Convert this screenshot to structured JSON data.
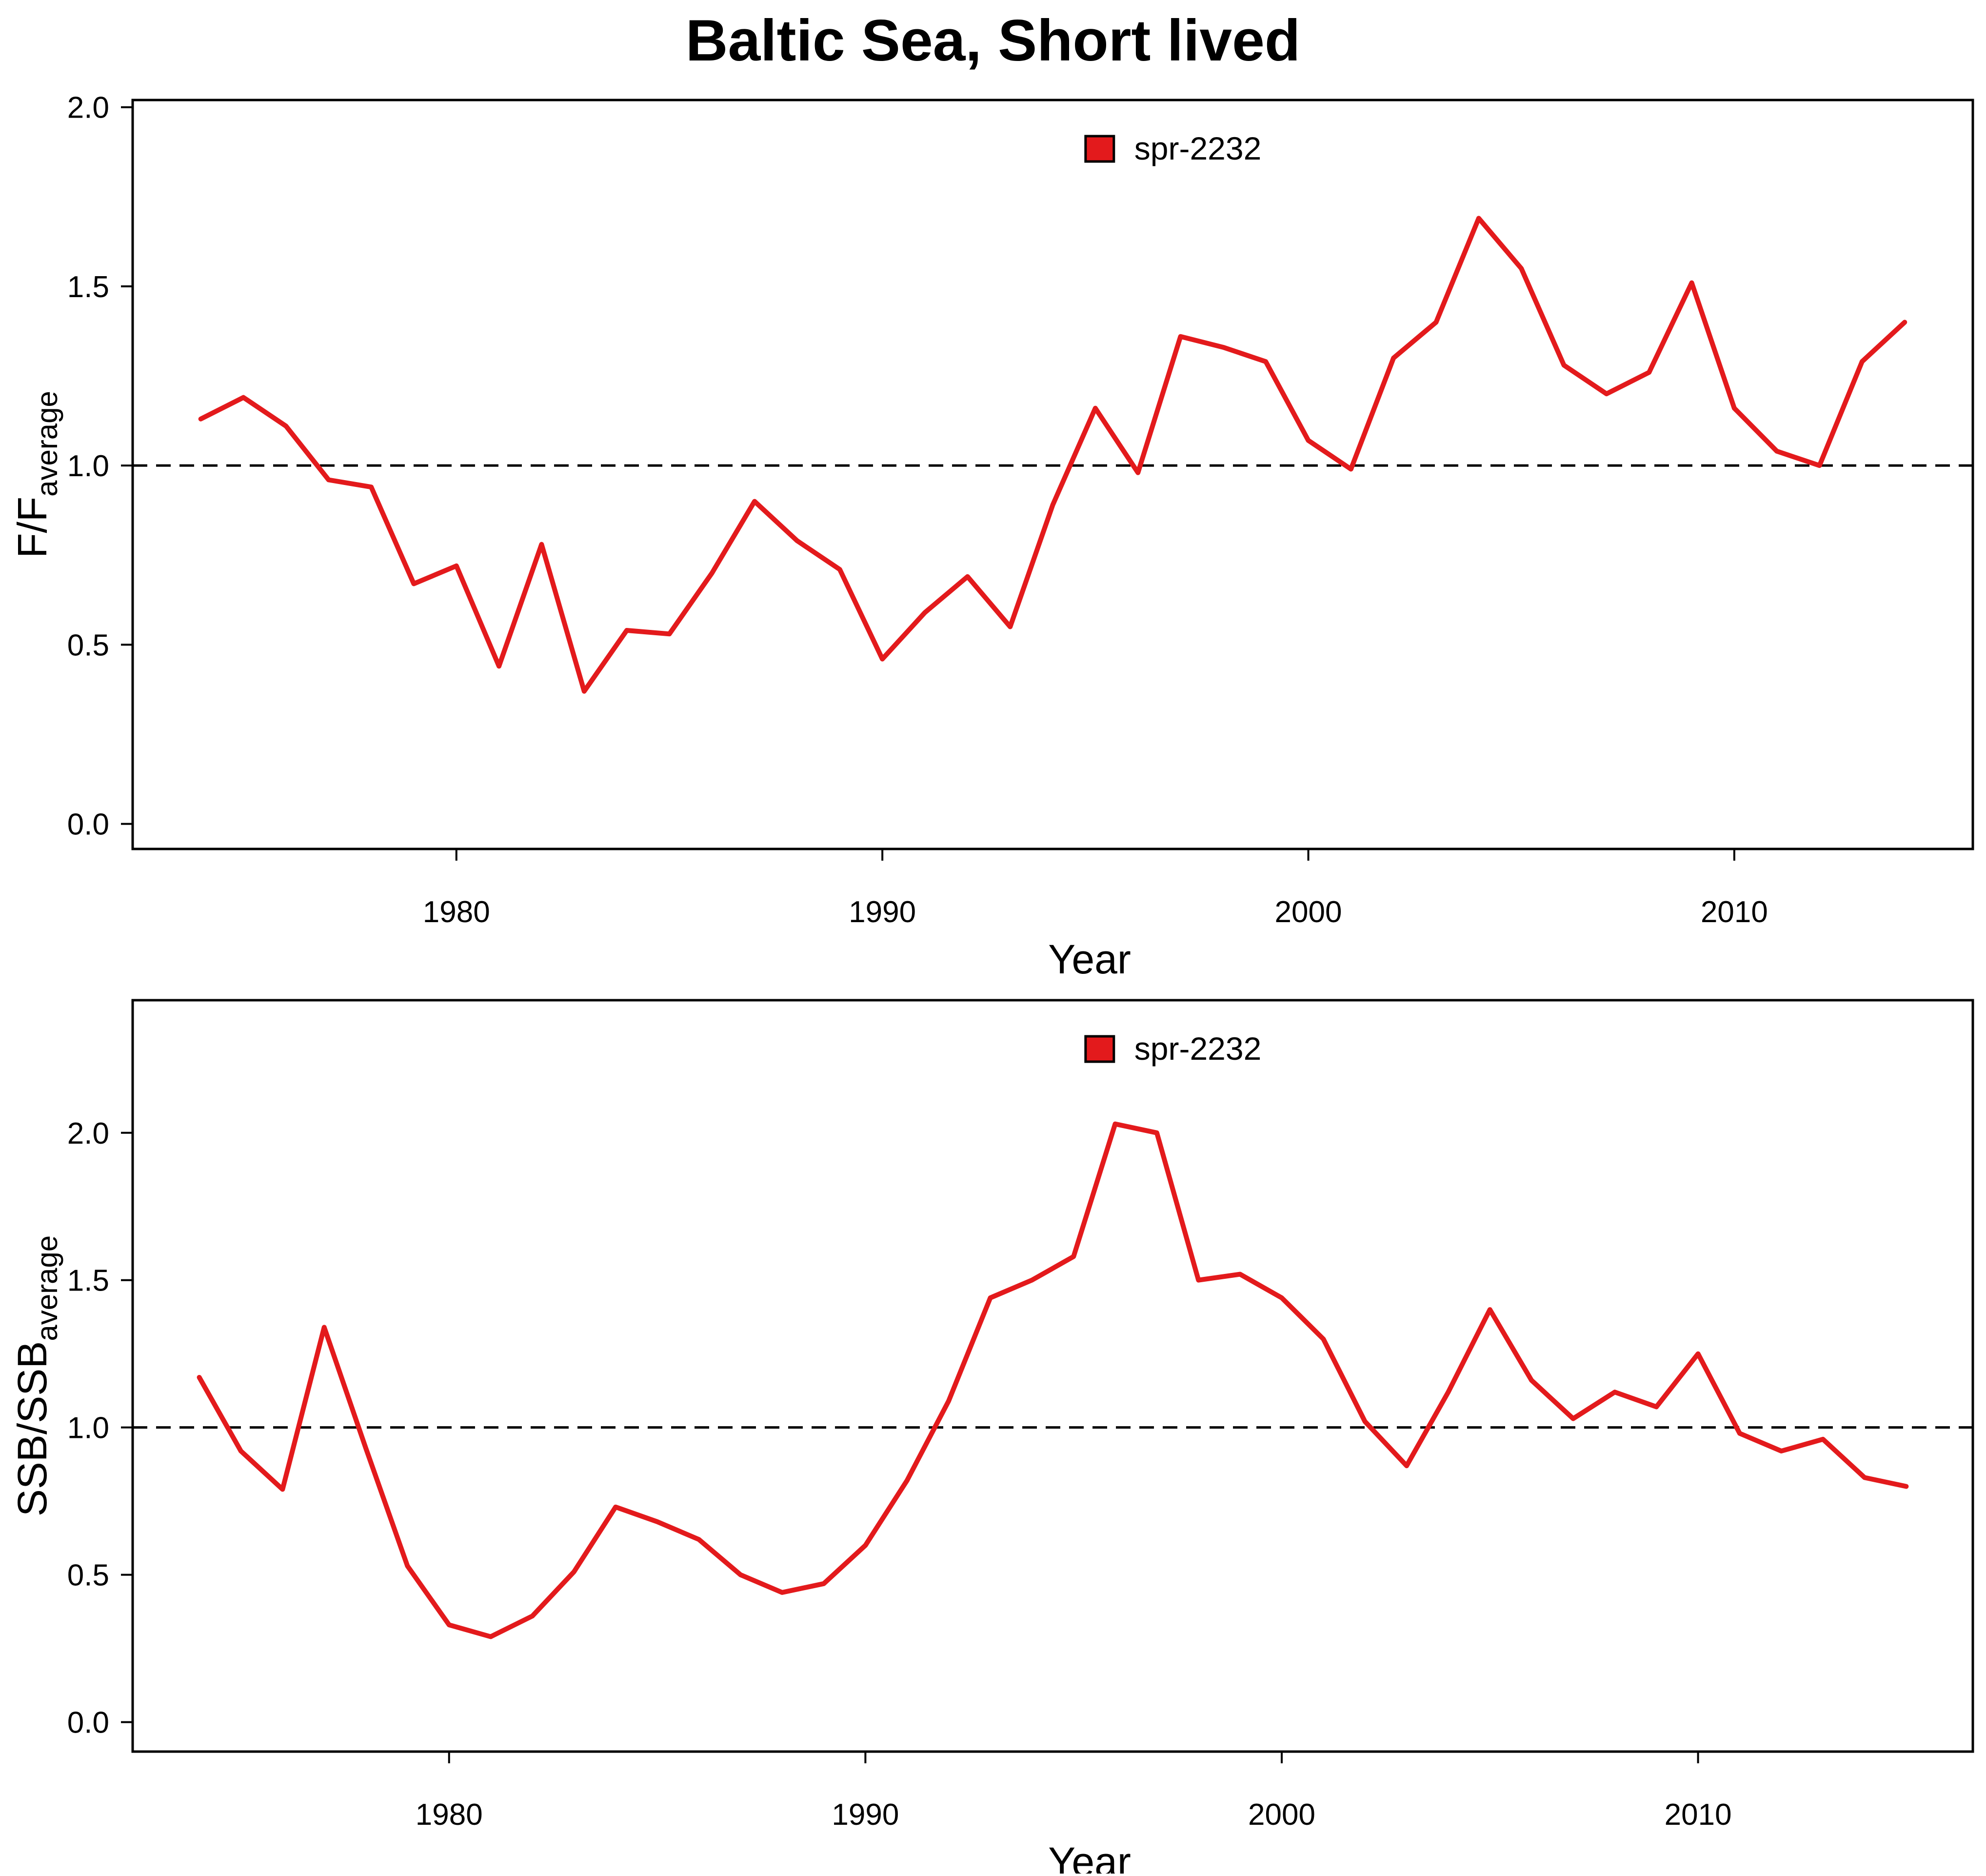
{
  "figure": {
    "title": "Baltic Sea, Short lived"
  },
  "colors": {
    "series": "#e31a1c",
    "reference": "#000000",
    "axis": "#000000"
  },
  "chart_data": [
    {
      "type": "line",
      "xlabel": "Year",
      "ylabel_main": "F/F",
      "ylabel_sub": "average",
      "xlim": [
        1972.4,
        2015.6
      ],
      "ylim": [
        -0.07,
        2.02
      ],
      "x_ticks": [
        1980,
        1990,
        2000,
        2010
      ],
      "y_ticks": [
        0.0,
        0.5,
        1.0,
        1.5,
        2.0
      ],
      "y_tick_labels": [
        "0.0",
        "0.5",
        "1.0",
        "1.5",
        "2.0"
      ],
      "reference_line": 1.0,
      "legend_position": "top-center",
      "series": [
        {
          "name": "spr-2232",
          "x": [
            1974,
            1975,
            1976,
            1977,
            1978,
            1979,
            1980,
            1981,
            1982,
            1983,
            1984,
            1985,
            1986,
            1987,
            1988,
            1989,
            1990,
            1991,
            1992,
            1993,
            1994,
            1995,
            1996,
            1997,
            1998,
            1999,
            2000,
            2001,
            2002,
            2003,
            2004,
            2005,
            2006,
            2007,
            2008,
            2009,
            2010,
            2011,
            2012,
            2013,
            2014
          ],
          "y": [
            1.13,
            1.19,
            1.11,
            0.96,
            0.94,
            0.67,
            0.72,
            0.44,
            0.78,
            0.37,
            0.54,
            0.53,
            0.7,
            0.9,
            0.79,
            0.71,
            0.46,
            0.59,
            0.69,
            0.55,
            0.89,
            1.16,
            0.98,
            1.36,
            1.33,
            1.29,
            1.07,
            0.99,
            1.3,
            1.4,
            1.69,
            1.55,
            1.28,
            1.2,
            1.26,
            1.51,
            1.16,
            1.04,
            1.0,
            1.29,
            1.4
          ]
        }
      ]
    },
    {
      "type": "line",
      "xlabel": "Year",
      "ylabel_main": "SSB/SSB",
      "ylabel_sub": "average",
      "xlim": [
        1972.4,
        2016.6
      ],
      "ylim": [
        -0.1,
        2.45
      ],
      "x_ticks": [
        1980,
        1990,
        2000,
        2010
      ],
      "y_ticks": [
        0.0,
        0.5,
        1.0,
        1.5,
        2.0
      ],
      "y_tick_labels": [
        "0.0",
        "0.5",
        "1.0",
        "1.5",
        "2.0"
      ],
      "reference_line": 1.0,
      "legend_position": "top-center",
      "series": [
        {
          "name": "spr-2232",
          "x": [
            1974,
            1975,
            1976,
            1977,
            1978,
            1979,
            1980,
            1981,
            1982,
            1983,
            1984,
            1985,
            1986,
            1987,
            1988,
            1989,
            1990,
            1991,
            1992,
            1993,
            1994,
            1995,
            1996,
            1997,
            1998,
            1999,
            2000,
            2001,
            2002,
            2003,
            2004,
            2005,
            2006,
            2007,
            2008,
            2009,
            2010,
            2011,
            2012,
            2013,
            2014,
            2015
          ],
          "y": [
            1.17,
            0.92,
            0.79,
            1.34,
            0.93,
            0.53,
            0.33,
            0.29,
            0.36,
            0.51,
            0.73,
            0.68,
            0.62,
            0.5,
            0.44,
            0.47,
            0.6,
            0.82,
            1.09,
            1.44,
            1.5,
            1.58,
            2.03,
            2.0,
            1.5,
            1.52,
            1.44,
            1.3,
            1.02,
            0.87,
            1.12,
            1.4,
            1.16,
            1.03,
            1.12,
            1.07,
            1.25,
            0.98,
            0.92,
            0.96,
            0.83,
            0.8
          ]
        }
      ]
    }
  ]
}
